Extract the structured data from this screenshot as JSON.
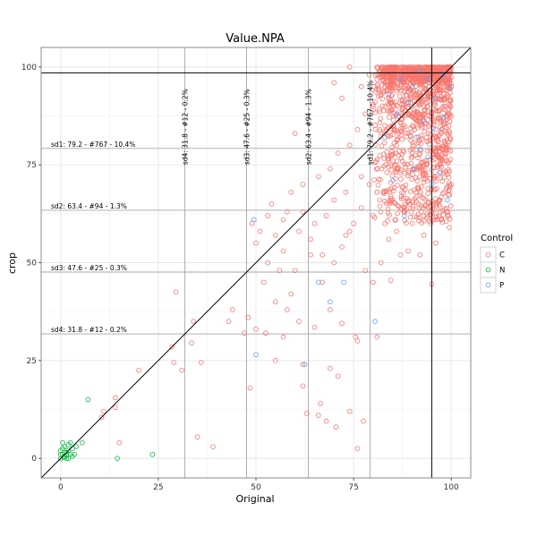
{
  "chart_data": {
    "type": "scatter",
    "title": "Value.NPA",
    "xlabel": "Original",
    "ylabel": "crop",
    "xlim": [
      -5,
      105
    ],
    "ylim": [
      -5,
      105
    ],
    "x_ticks": [
      0,
      25,
      50,
      75,
      100
    ],
    "y_ticks": [
      0,
      25,
      50,
      75,
      100
    ],
    "grid": true,
    "legend": {
      "title": "Control",
      "position": "right"
    },
    "series": [
      {
        "name": "C",
        "color": "#F8766D"
      },
      {
        "name": "N",
        "color": "#00BA38"
      },
      {
        "name": "P",
        "color": "#619CFF"
      }
    ],
    "diagonal": {
      "from": [
        -5,
        -5
      ],
      "to": [
        105,
        105
      ]
    },
    "reference_lines": {
      "vertical": 95,
      "horizontal": 98.5
    },
    "thresholds": [
      {
        "value": 79.2,
        "label": "sd1: 79.2 - #767 - 10.4%"
      },
      {
        "value": 63.4,
        "label": "sd2: 63.4 - #94 - 1.3%"
      },
      {
        "value": 47.6,
        "label": "sd3: 47.6 - #25 - 0.3%"
      },
      {
        "value": 31.8,
        "label": "sd4: 31.8 - #12 - 0.2%"
      }
    ],
    "points": {
      "C": [
        [
          29.5,
          42.5
        ],
        [
          28.5,
          28.5
        ],
        [
          33.5,
          29.5
        ],
        [
          34,
          35
        ],
        [
          36,
          24.5
        ],
        [
          31,
          22.5
        ],
        [
          29,
          24.5
        ],
        [
          14,
          15.5
        ],
        [
          15,
          4
        ],
        [
          20,
          22.5
        ],
        [
          35,
          5.5
        ],
        [
          39,
          3
        ],
        [
          14,
          13
        ],
        [
          10.5,
          10.5
        ],
        [
          11,
          12
        ],
        [
          48,
          36
        ],
        [
          50,
          33
        ],
        [
          52.5,
          32
        ],
        [
          57,
          31
        ],
        [
          55,
          25
        ],
        [
          48.5,
          18
        ],
        [
          61,
          35
        ],
        [
          62,
          24
        ],
        [
          63,
          11.5
        ],
        [
          66,
          11
        ],
        [
          68,
          9.5
        ],
        [
          70.5,
          8
        ],
        [
          74,
          12
        ],
        [
          76,
          2.5
        ],
        [
          77.5,
          9.5
        ],
        [
          66.5,
          14
        ],
        [
          62,
          18.5
        ],
        [
          69,
          23
        ],
        [
          71,
          21
        ],
        [
          65,
          33.5
        ],
        [
          67,
          45
        ],
        [
          69,
          38
        ],
        [
          72,
          34.5
        ],
        [
          75.5,
          31
        ],
        [
          76,
          30
        ],
        [
          81,
          31
        ],
        [
          84.5,
          45.5
        ],
        [
          87,
          52
        ],
        [
          89,
          53
        ],
        [
          92,
          52
        ],
        [
          95,
          44.5
        ],
        [
          99.5,
          59
        ],
        [
          58,
          38
        ],
        [
          55,
          40
        ],
        [
          59,
          42
        ],
        [
          47,
          32
        ],
        [
          52,
          45
        ],
        [
          56,
          48
        ],
        [
          60,
          48
        ],
        [
          64,
          52
        ],
        [
          72,
          54
        ],
        [
          74,
          58
        ],
        [
          78,
          48
        ],
        [
          80,
          45
        ],
        [
          82,
          50
        ],
        [
          84,
          56
        ],
        [
          44,
          38
        ],
        [
          43,
          35
        ],
        [
          50,
          55
        ],
        [
          53,
          50
        ],
        [
          57,
          53
        ],
        [
          61,
          58
        ],
        [
          65,
          60
        ],
        [
          68,
          62
        ],
        [
          70,
          66
        ],
        [
          73,
          68
        ],
        [
          77,
          72
        ],
        [
          79,
          70
        ],
        [
          81,
          68
        ],
        [
          54,
          65
        ],
        [
          58,
          63
        ],
        [
          62,
          70
        ],
        [
          66,
          72
        ],
        [
          69,
          74
        ],
        [
          71,
          78
        ],
        [
          74,
          80
        ],
        [
          76,
          84
        ],
        [
          78,
          88
        ],
        [
          80,
          90
        ],
        [
          60,
          83
        ],
        [
          70,
          96
        ],
        [
          72,
          92
        ],
        [
          74,
          100
        ],
        [
          77,
          95
        ],
        [
          79,
          98
        ],
        [
          82,
          93
        ],
        [
          85,
          90
        ],
        [
          88,
          95
        ],
        [
          91,
          92
        ],
        [
          93,
          97
        ],
        [
          95,
          99
        ],
        [
          97,
          94
        ],
        [
          99,
          96
        ],
        [
          83,
          85
        ],
        [
          86,
          80
        ],
        [
          89,
          83
        ],
        [
          92,
          86
        ],
        [
          95,
          88
        ],
        [
          98,
          90
        ],
        [
          84,
          76
        ],
        [
          87,
          73
        ],
        [
          90,
          78
        ],
        [
          93,
          75
        ],
        [
          96,
          72
        ],
        [
          99,
          80
        ],
        [
          85,
          66
        ],
        [
          88,
          64
        ],
        [
          91,
          68
        ],
        [
          94,
          62
        ],
        [
          97,
          66
        ],
        [
          100,
          70
        ],
        [
          86,
          58
        ],
        [
          90,
          60
        ],
        [
          93,
          57
        ],
        [
          96,
          55
        ],
        [
          83,
          60
        ],
        [
          80,
          62
        ],
        [
          77,
          64
        ],
        [
          75,
          60
        ],
        [
          73,
          57
        ],
        [
          70,
          50
        ],
        [
          67,
          52
        ],
        [
          64,
          56
        ],
        [
          62,
          63
        ],
        [
          59,
          68
        ],
        [
          57,
          61
        ],
        [
          55,
          57
        ],
        [
          53,
          62
        ],
        [
          51,
          58
        ],
        [
          49,
          60
        ]
      ],
      "N": [
        [
          0,
          0
        ],
        [
          0.5,
          1
        ],
        [
          1,
          0.5
        ],
        [
          1.5,
          1.5
        ],
        [
          2,
          0
        ],
        [
          0,
          2
        ],
        [
          0.5,
          2.5
        ],
        [
          1,
          3
        ],
        [
          2,
          2
        ],
        [
          2.5,
          1
        ],
        [
          3,
          0.5
        ],
        [
          1.5,
          0
        ],
        [
          0,
          1
        ],
        [
          2,
          3.5
        ],
        [
          0.5,
          4
        ],
        [
          3,
          2.5
        ],
        [
          4,
          3
        ],
        [
          2.5,
          4
        ],
        [
          1,
          1.5
        ],
        [
          3.5,
          1
        ],
        [
          7,
          15
        ],
        [
          5.5,
          4
        ],
        [
          14.5,
          0
        ],
        [
          23.5,
          1
        ],
        [
          1.5,
          0.8
        ],
        [
          0.8,
          0.2
        ]
      ],
      "P": [
        [
          49.5,
          61
        ],
        [
          50,
          26.5
        ],
        [
          62.5,
          24
        ],
        [
          66,
          45
        ],
        [
          69,
          40
        ],
        [
          72.5,
          45
        ],
        [
          80.5,
          35
        ],
        [
          85,
          71
        ],
        [
          88,
          62
        ],
        [
          90.5,
          74
        ],
        [
          92,
          79
        ],
        [
          94,
          77
        ],
        [
          95,
          70
        ],
        [
          97,
          73
        ],
        [
          99,
          66
        ],
        [
          84,
          93
        ],
        [
          87,
          97
        ],
        [
          90,
          95
        ],
        [
          92,
          99
        ],
        [
          94,
          97
        ],
        [
          96,
          92
        ],
        [
          98,
          98
        ],
        [
          100,
          95
        ],
        [
          86,
          88
        ],
        [
          89,
          91
        ],
        [
          93,
          86
        ],
        [
          96,
          84
        ],
        [
          98,
          87
        ],
        [
          83,
          82
        ],
        [
          91,
          82
        ]
      ]
    },
    "dense_region": {
      "x": [
        80,
        100
      ],
      "y": [
        60,
        100
      ]
    }
  }
}
